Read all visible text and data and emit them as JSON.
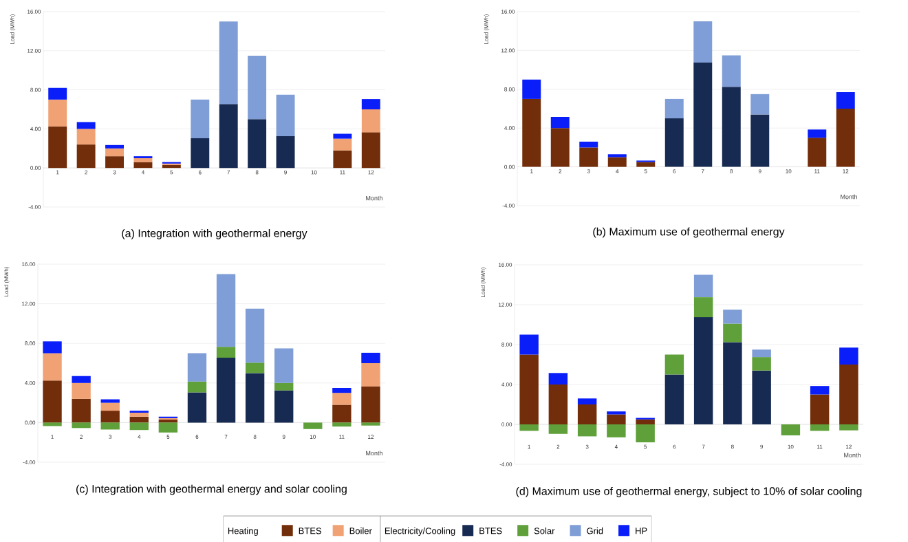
{
  "chart_data": [
    {
      "type": "bar",
      "stacked": true,
      "title": "(a) Integration with geothermal energy",
      "xlabel": "Month",
      "ylabel": "Load (MWh)",
      "categories": [
        "1",
        "2",
        "3",
        "4",
        "5",
        "6",
        "7",
        "8",
        "9",
        "10",
        "11",
        "12"
      ],
      "ylim": [
        -4,
        16
      ],
      "yticks": [
        {
          "value": -4,
          "label": "-4.00"
        },
        {
          "value": 0,
          "label": "0.00"
        },
        {
          "value": 4,
          "label": "4.00"
        },
        {
          "value": 8,
          "label": "8.00"
        },
        {
          "value": 12,
          "label": "12.00"
        },
        {
          "value": 16,
          "label": "16.00"
        }
      ],
      "grid": "y",
      "series": [
        {
          "color": "#722d0a",
          "values": [
            4.25,
            2.4,
            1.2,
            0.6,
            0.3,
            null,
            null,
            null,
            null,
            null,
            1.8,
            3.65
          ]
        },
        {
          "color": "#f0a274",
          "values": [
            2.75,
            1.6,
            0.8,
            0.4,
            0.15,
            null,
            null,
            null,
            null,
            null,
            1.2,
            2.35
          ]
        },
        {
          "color": "#172a52",
          "values": [
            null,
            null,
            null,
            null,
            null,
            3.05,
            6.55,
            5.0,
            3.25,
            null,
            null,
            null
          ]
        },
        {
          "color": "#7f9dd6",
          "values": [
            null,
            null,
            null,
            null,
            null,
            3.95,
            8.45,
            6.5,
            4.25,
            null,
            null,
            null
          ]
        },
        {
          "color": "#0a1efa",
          "values": [
            1.2,
            0.7,
            0.35,
            0.2,
            0.15,
            null,
            null,
            null,
            null,
            null,
            0.5,
            1.05
          ]
        }
      ]
    },
    {
      "type": "bar",
      "stacked": true,
      "title": "(b) Maximum use of geothermal energy",
      "xlabel": "Month",
      "ylabel": "Load (MWh)",
      "categories": [
        "1",
        "2",
        "3",
        "4",
        "5",
        "6",
        "7",
        "8",
        "9",
        "10",
        "11",
        "12"
      ],
      "ylim": [
        -4,
        16
      ],
      "yticks": [
        {
          "value": -4,
          "label": "-4.00"
        },
        {
          "value": 0,
          "label": "0.00"
        },
        {
          "value": 4,
          "label": "4.00"
        },
        {
          "value": 8,
          "label": "8.00"
        },
        {
          "value": 12,
          "label": "12.00"
        },
        {
          "value": 16,
          "label": "16.00"
        }
      ],
      "grid": "y",
      "series": [
        {
          "color": "#722d0a",
          "values": [
            7.0,
            4.0,
            2.0,
            1.0,
            0.5,
            null,
            null,
            null,
            null,
            null,
            3.0,
            6.0
          ]
        },
        {
          "color": "#172a52",
          "values": [
            null,
            null,
            null,
            null,
            null,
            5.0,
            10.75,
            8.25,
            5.4,
            null,
            null,
            null
          ]
        },
        {
          "color": "#7f9dd6",
          "values": [
            null,
            null,
            null,
            null,
            null,
            2.0,
            4.25,
            3.25,
            2.1,
            null,
            null,
            null
          ]
        },
        {
          "color": "#0a1efa",
          "values": [
            2.0,
            1.15,
            0.6,
            0.3,
            0.15,
            null,
            null,
            null,
            null,
            null,
            0.85,
            1.7
          ]
        }
      ]
    },
    {
      "type": "bar",
      "stacked": true,
      "title": "(c) Integration with geothermal energy and solar cooling",
      "xlabel": "Month",
      "ylabel": "Load (MWh)",
      "legend": "bottom",
      "legend_title": "Heating",
      "annotations": [
        "Electricity/Cooling"
      ],
      "categories": [
        "1",
        "2",
        "3",
        "4",
        "5",
        "6",
        "7",
        "8",
        "9",
        "10",
        "11",
        "12"
      ],
      "ylim": [
        -4,
        16
      ],
      "yticks": [
        {
          "value": -4,
          "label": "-4.00"
        },
        {
          "value": 0,
          "label": "0.00"
        },
        {
          "value": 4,
          "label": "4.00"
        },
        {
          "value": 8,
          "label": "8.00"
        },
        {
          "value": 12,
          "label": "12.00"
        },
        {
          "value": 16,
          "label": "16.00"
        }
      ],
      "grid": "y",
      "series": [
        {
          "name": "BTES",
          "color": "#722d0a",
          "values": [
            4.25,
            2.4,
            1.2,
            0.6,
            0.3,
            null,
            null,
            null,
            null,
            null,
            1.8,
            3.65
          ]
        },
        {
          "name": "Boiler",
          "color": "#f0a274",
          "values": [
            2.75,
            1.6,
            0.8,
            0.4,
            0.15,
            null,
            null,
            null,
            null,
            null,
            1.2,
            2.35
          ]
        },
        {
          "name": "BTES",
          "color": "#172a52",
          "values": [
            null,
            null,
            null,
            null,
            null,
            3.05,
            6.55,
            5.0,
            3.25,
            null,
            null,
            null
          ]
        },
        {
          "name": "Solar",
          "color": "#5fa03a",
          "values": [
            -0.35,
            -0.55,
            -0.7,
            -0.75,
            -1.0,
            1.1,
            1.1,
            1.05,
            0.75,
            -0.65,
            -0.4,
            -0.3
          ]
        },
        {
          "name": "Grid",
          "color": "#7f9dd6",
          "values": [
            null,
            null,
            null,
            null,
            null,
            2.85,
            7.35,
            5.45,
            3.5,
            null,
            null,
            null
          ]
        },
        {
          "name": "HP",
          "color": "#0a1efa",
          "values": [
            1.2,
            0.7,
            0.35,
            0.2,
            0.15,
            null,
            null,
            null,
            null,
            null,
            0.5,
            1.05
          ]
        }
      ]
    },
    {
      "type": "bar",
      "stacked": true,
      "title": "(d) Maximum use of geothermal energy, subject to 10% of solar cooling",
      "xlabel": "Month",
      "ylabel": "Load (MWh)",
      "categories": [
        "1",
        "2",
        "3",
        "4",
        "5",
        "6",
        "7",
        "8",
        "9",
        "10",
        "11",
        "12"
      ],
      "ylim": [
        -4,
        16
      ],
      "yticks": [
        {
          "value": -4,
          "label": "-4.00"
        },
        {
          "value": 0,
          "label": "0.00"
        },
        {
          "value": 4,
          "label": "4.00"
        },
        {
          "value": 8,
          "label": "8.00"
        },
        {
          "value": 12,
          "label": "12.00"
        },
        {
          "value": 16,
          "label": "16.00"
        }
      ],
      "grid": "y",
      "series": [
        {
          "color": "#722d0a",
          "values": [
            7.0,
            4.0,
            2.0,
            1.0,
            0.5,
            null,
            null,
            null,
            null,
            null,
            3.0,
            6.0
          ]
        },
        {
          "color": "#172a52",
          "values": [
            null,
            null,
            null,
            null,
            null,
            5.0,
            10.75,
            8.25,
            5.4,
            null,
            null,
            null
          ]
        },
        {
          "color": "#5fa03a",
          "values": [
            -0.65,
            -0.95,
            -1.2,
            -1.3,
            -1.8,
            2.0,
            2.0,
            1.85,
            1.35,
            -1.1,
            -0.65,
            -0.6
          ]
        },
        {
          "color": "#7f9dd6",
          "values": [
            null,
            null,
            null,
            null,
            null,
            null,
            2.25,
            1.4,
            0.75,
            null,
            null,
            null
          ]
        },
        {
          "color": "#0a1efa",
          "values": [
            2.0,
            1.15,
            0.6,
            0.3,
            0.15,
            null,
            null,
            null,
            null,
            null,
            0.85,
            1.7
          ]
        }
      ]
    }
  ]
}
